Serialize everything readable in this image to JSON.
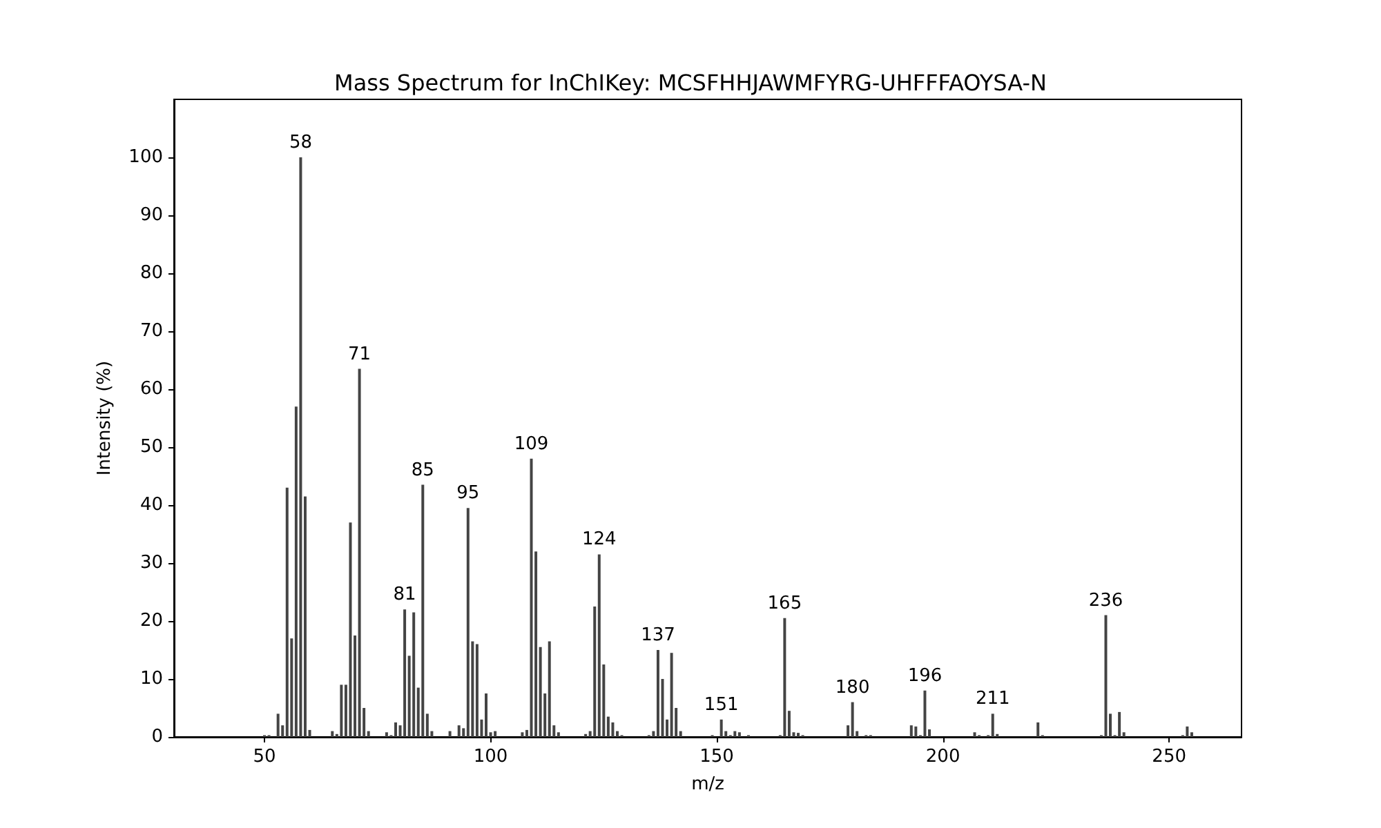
{
  "chart_data": {
    "type": "bar",
    "title": "Mass Spectrum for InChIKey: MCSFHHJAWMFYRG-UHFFFAOYSA-N",
    "xlabel": "m/z",
    "ylabel": "Intensity (%)",
    "x": [
      50,
      51,
      53,
      54,
      55,
      56,
      57,
      58,
      59,
      60,
      65,
      66,
      67,
      68,
      69,
      70,
      71,
      72,
      73,
      77,
      78,
      79,
      80,
      81,
      82,
      83,
      84,
      85,
      86,
      87,
      91,
      93,
      94,
      95,
      96,
      97,
      98,
      99,
      100,
      101,
      107,
      108,
      109,
      110,
      111,
      112,
      113,
      114,
      115,
      121,
      122,
      123,
      124,
      125,
      126,
      127,
      128,
      129,
      135,
      136,
      137,
      138,
      139,
      140,
      141,
      142,
      149,
      151,
      152,
      153,
      154,
      155,
      157,
      164,
      165,
      166,
      167,
      168,
      169,
      179,
      180,
      181,
      183,
      184,
      193,
      194,
      195,
      196,
      197,
      207,
      208,
      210,
      211,
      212,
      221,
      222,
      235,
      236,
      237,
      238,
      239,
      240,
      253,
      254,
      255
    ],
    "values": [
      0.3,
      0.3,
      4,
      2,
      43,
      17,
      57,
      100,
      41.5,
      1.2,
      1,
      0.5,
      9,
      9,
      37,
      17.5,
      63.5,
      5,
      1,
      0.8,
      0.3,
      2.5,
      2,
      22,
      14,
      21.5,
      8.5,
      43.5,
      4,
      1,
      1,
      2,
      1.5,
      39.5,
      16.5,
      16,
      3,
      7.5,
      0.8,
      1,
      0.8,
      1.2,
      48,
      32,
      15.5,
      7.5,
      16.5,
      2,
      0.8,
      0.5,
      1,
      22.5,
      31.5,
      12.5,
      3.5,
      2.5,
      1,
      0.3,
      0.3,
      1,
      15,
      10,
      3,
      14.5,
      5,
      1,
      0.3,
      3,
      1,
      0.3,
      1,
      0.8,
      0.3,
      0.3,
      20.5,
      4.5,
      0.8,
      0.7,
      0.3,
      2,
      6,
      1,
      0.3,
      0.3,
      2,
      1.8,
      0.3,
      8,
      1.3,
      0.8,
      0.3,
      0.3,
      4,
      0.5,
      2.5,
      0.3,
      0.3,
      21,
      4,
      0.3,
      4.3,
      0.8,
      0.3,
      1.8,
      0.8
    ],
    "color": "#444444",
    "annotations": [
      {
        "text": "58",
        "x": 58,
        "y": 100
      },
      {
        "text": "71",
        "x": 71,
        "y": 63.5
      },
      {
        "text": "81",
        "x": 81,
        "y": 22
      },
      {
        "text": "85",
        "x": 85,
        "y": 43.5
      },
      {
        "text": "95",
        "x": 95,
        "y": 39.5
      },
      {
        "text": "109",
        "x": 109,
        "y": 48
      },
      {
        "text": "124",
        "x": 124,
        "y": 31.5
      },
      {
        "text": "137",
        "x": 137,
        "y": 15
      },
      {
        "text": "151",
        "x": 151,
        "y": 3
      },
      {
        "text": "165",
        "x": 165,
        "y": 20.5
      },
      {
        "text": "180",
        "x": 180,
        "y": 6
      },
      {
        "text": "196",
        "x": 196,
        "y": 8
      },
      {
        "text": "211",
        "x": 211,
        "y": 4
      },
      {
        "text": "236",
        "x": 236,
        "y": 21
      }
    ],
    "xlim": [
      30,
      266
    ],
    "xticks": [
      50,
      100,
      150,
      200,
      250
    ],
    "ylim": [
      0,
      110
    ],
    "yticks": [
      0,
      10,
      20,
      30,
      40,
      50,
      60,
      70,
      80,
      90,
      100
    ],
    "grid": false
  }
}
